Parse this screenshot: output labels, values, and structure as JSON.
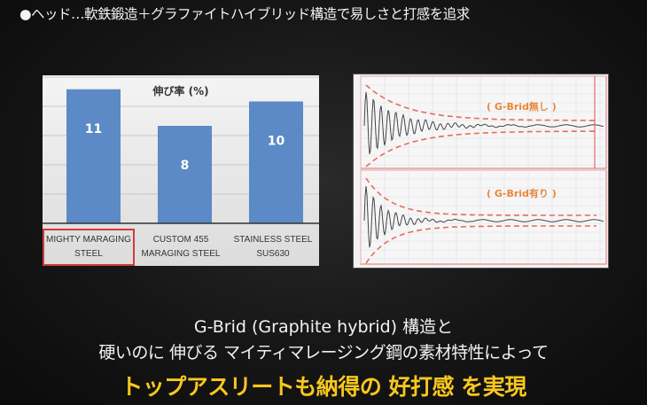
{
  "heading": "●ヘッド…軟鉄鍛造＋グラファイトハイブリッド構造で易しさと打感を追求",
  "chart_data": [
    {
      "type": "bar",
      "title": "伸び率 (%)",
      "categories": [
        "MIGHTY MARAGING STEEL",
        "CUSTOM 455 MARAGING STEEL",
        "STAINLESS STEEL SUS630"
      ],
      "values": [
        11,
        8,
        10
      ],
      "data_labels": [
        "11",
        "8",
        "10"
      ],
      "ylim": [
        0,
        12
      ],
      "grid": true,
      "highlighted_category": "MIGHTY MARAGING STEEL",
      "colors": {
        "bar": "#5b8ac6",
        "highlight_border": "#d43a3a"
      }
    },
    {
      "type": "line",
      "panels": [
        {
          "annotation": "( G-Brid無し )"
        },
        {
          "annotation": "( G-Brid有り )"
        }
      ],
      "colors": {
        "signal": "#444444",
        "envelope": "#e86a5a",
        "annotation": "#e8873a"
      }
    }
  ],
  "caption": {
    "line1": "G-Brid (Graphite hybrid) 構造と",
    "line2": "硬いのに 伸びる マイティマレージング鋼の素材特性によって",
    "line3": "トップアスリートも納得の 好打感 を実現"
  }
}
